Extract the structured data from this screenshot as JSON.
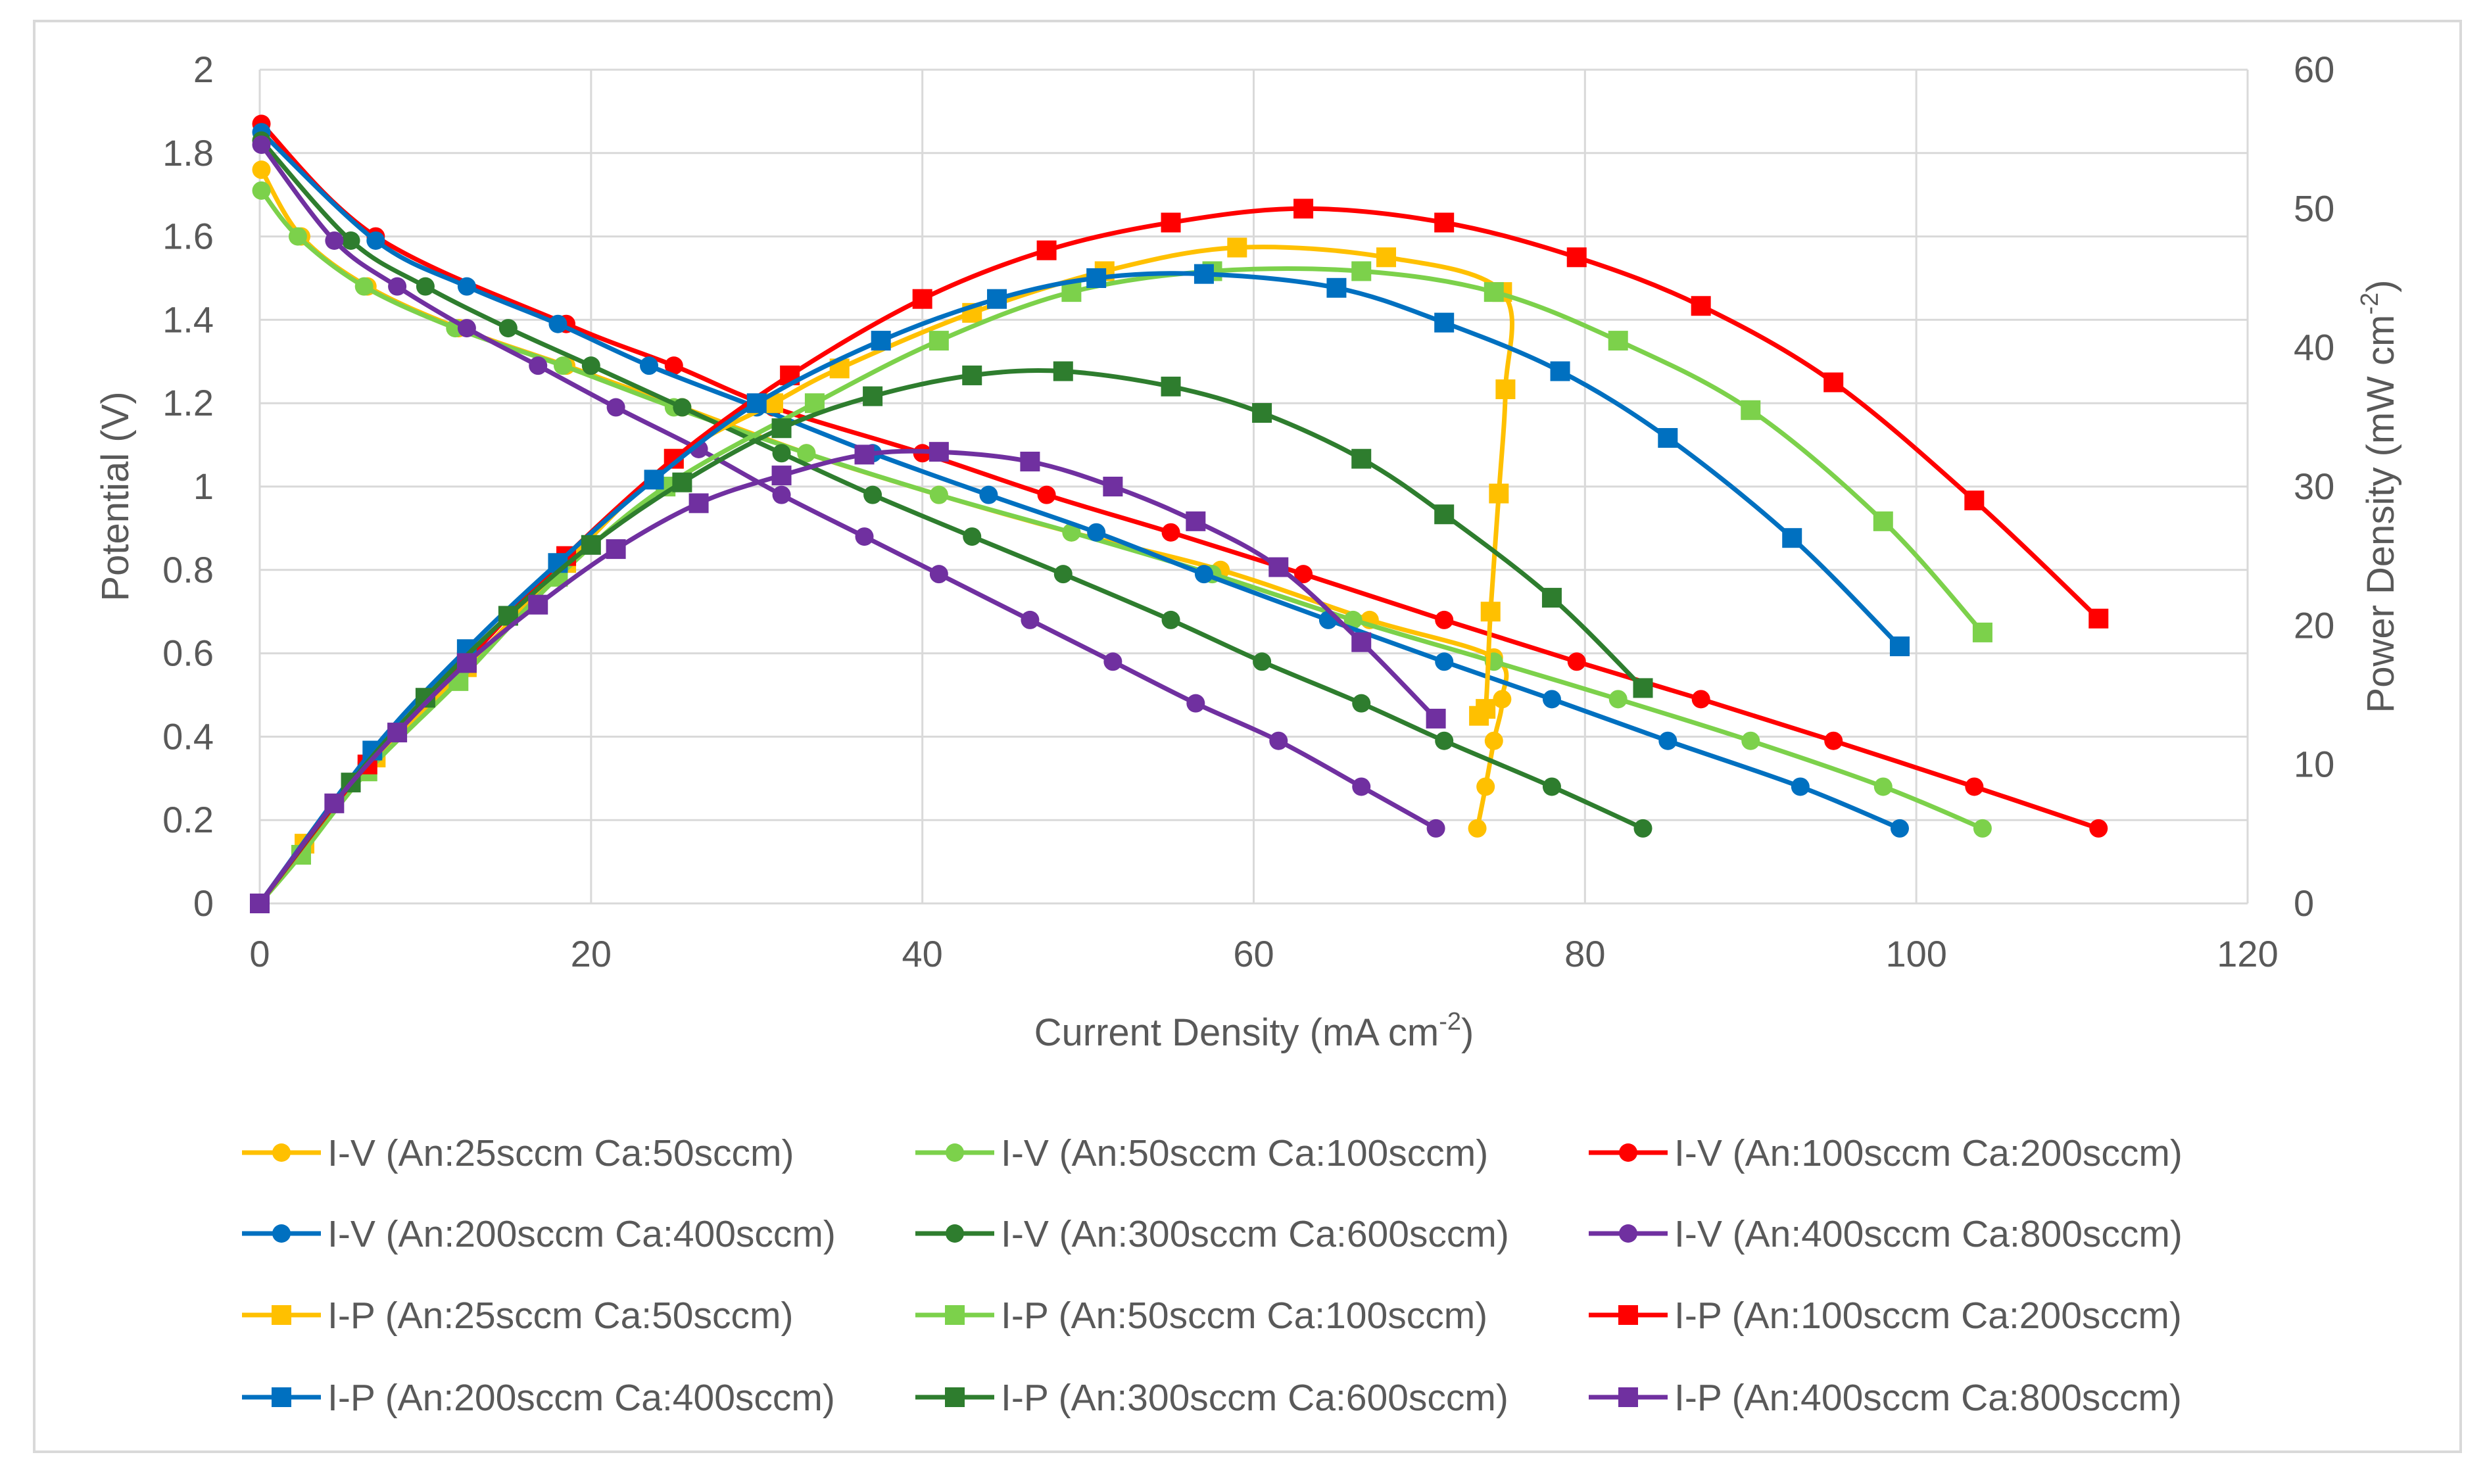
{
  "chart_data": {
    "type": "line",
    "title": "",
    "xlabel": "Current Density (mA cm",
    "xlabel_sup": "-2",
    "xlabel_end": ")",
    "ylabel": "Potential (V)",
    "y2label": "Power Density (mW cm",
    "y2label_sup": "-2",
    "y2label_end": ")",
    "xlim": [
      0,
      120
    ],
    "ylim": [
      0,
      2
    ],
    "y2lim": [
      0,
      60
    ],
    "xticks": [
      "0",
      "20",
      "40",
      "60",
      "80",
      "100",
      "120"
    ],
    "yticks": [
      "0",
      "0.2",
      "0.4",
      "0.6",
      "0.8",
      "1",
      "1.2",
      "1.4",
      "1.6",
      "1.8",
      "2"
    ],
    "y2ticks": [
      "0",
      "10",
      "20",
      "30",
      "40",
      "50",
      "60"
    ],
    "grid": true,
    "legend_position": "bottom",
    "series": [
      {
        "name": "I-V (An:25sccm  Ca:50sccm)",
        "axis": "left",
        "marker": "circle",
        "color": "#FFC000",
        "x": [
          0.1,
          2.5,
          6.5,
          12,
          18.5,
          25.5,
          33,
          41,
          49,
          58,
          67,
          74.5,
          75,
          74.5,
          74,
          73.5
        ],
        "y": [
          1.76,
          1.6,
          1.48,
          1.38,
          1.29,
          1.19,
          1.08,
          0.98,
          0.89,
          0.8,
          0.68,
          0.59,
          0.49,
          0.39,
          0.28,
          0.18
        ]
      },
      {
        "name": "I-V (An:50sccm  Ca:100sccm)",
        "axis": "left",
        "marker": "circle",
        "color": "#7CD14B",
        "x": [
          0.1,
          2.3,
          6.3,
          11.8,
          18.3,
          25,
          33,
          41,
          49,
          57.5,
          66,
          74.5,
          82,
          90,
          98,
          104
        ],
        "y": [
          1.71,
          1.6,
          1.48,
          1.38,
          1.29,
          1.19,
          1.08,
          0.98,
          0.89,
          0.79,
          0.68,
          0.58,
          0.49,
          0.39,
          0.28,
          0.18
        ]
      },
      {
        "name": "I-V (An:100sccm  Ca:200sccm)",
        "axis": "left",
        "marker": "circle",
        "color": "#FF0000",
        "x": [
          0.1,
          7,
          18.5,
          25,
          31,
          40,
          47.5,
          55,
          63,
          71.5,
          79.5,
          87,
          95,
          103.5,
          111
        ],
        "y": [
          1.87,
          1.6,
          1.39,
          1.29,
          1.19,
          1.08,
          0.98,
          0.89,
          0.79,
          0.68,
          0.58,
          0.49,
          0.39,
          0.28,
          0.18
        ]
      },
      {
        "name": "I-V (An:200sccm  Ca:400sccm)",
        "axis": "left",
        "marker": "circle",
        "color": "#0070C0",
        "x": [
          0.1,
          7,
          12.5,
          18,
          23.5,
          30,
          37,
          44,
          50.5,
          57,
          64.5,
          71.5,
          78,
          85,
          93,
          99
        ],
        "y": [
          1.85,
          1.59,
          1.48,
          1.39,
          1.29,
          1.19,
          1.08,
          0.98,
          0.89,
          0.79,
          0.68,
          0.58,
          0.49,
          0.39,
          0.28,
          0.18
        ]
      },
      {
        "name": "I-V (An:300sccm  Ca:600sccm)",
        "axis": "left",
        "marker": "circle",
        "color": "#2E7D2E",
        "x": [
          0.1,
          5.5,
          10,
          15,
          20,
          25.5,
          31.5,
          37,
          43,
          48.5,
          55,
          60.5,
          66.5,
          71.5,
          78,
          83.5
        ],
        "y": [
          1.83,
          1.59,
          1.48,
          1.38,
          1.29,
          1.19,
          1.08,
          0.98,
          0.88,
          0.79,
          0.68,
          0.58,
          0.48,
          0.39,
          0.28,
          0.18
        ]
      },
      {
        "name": "I-V (An:400sccm  Ca:800sccm)",
        "axis": "left",
        "marker": "circle",
        "color": "#7030A0",
        "x": [
          0.1,
          4.5,
          8.3,
          12.5,
          16.8,
          21.5,
          26.5,
          31.5,
          36.5,
          41,
          46.5,
          51.5,
          56.5,
          61.5,
          66.5,
          71
        ],
        "y": [
          1.82,
          1.59,
          1.48,
          1.38,
          1.29,
          1.19,
          1.09,
          0.98,
          0.88,
          0.79,
          0.68,
          0.58,
          0.48,
          0.39,
          0.28,
          0.18
        ]
      },
      {
        "name": "I-P (An:25sccm  Ca:50sccm)",
        "axis": "right",
        "marker": "square",
        "color": "#FFC000",
        "x": [
          0,
          2.7,
          7,
          12.5,
          18.5,
          25,
          31,
          35,
          43,
          51,
          59,
          68,
          75,
          75.2,
          74.8,
          74.3,
          74,
          73.6
        ],
        "y": [
          0,
          4.3,
          10.5,
          17,
          24.5,
          32,
          36,
          38.5,
          42.5,
          45.5,
          47.2,
          46.5,
          44,
          37,
          29.5,
          21,
          14,
          13.5
        ]
      },
      {
        "name": "I-P (An:50sccm  Ca:100sccm)",
        "axis": "right",
        "marker": "square",
        "color": "#7CD14B",
        "x": [
          0,
          2.5,
          6.5,
          12,
          18,
          24.5,
          33.5,
          41,
          49,
          57.5,
          66.5,
          74.5,
          82,
          90,
          98,
          104
        ],
        "y": [
          0,
          3.5,
          9.5,
          16,
          23.5,
          30,
          36,
          40.5,
          44,
          45.5,
          45.5,
          44,
          40.5,
          35.5,
          27.5,
          19.5
        ]
      },
      {
        "name": "I-P (An:100sccm  Ca:200sccm)",
        "axis": "right",
        "marker": "square",
        "color": "#FF0000",
        "x": [
          0,
          6.5,
          12.5,
          18.5,
          25,
          32,
          40,
          47.5,
          55,
          63,
          71.5,
          79.5,
          87,
          95,
          103.5,
          111
        ],
        "y": [
          0,
          10,
          17.5,
          25,
          32,
          38,
          43.5,
          47,
          49,
          50,
          49,
          46.5,
          43,
          37.5,
          29,
          20.5
        ]
      },
      {
        "name": "I-P (An:200sccm  Ca:400sccm)",
        "axis": "right",
        "marker": "square",
        "color": "#0070C0",
        "x": [
          0,
          6.8,
          12.5,
          18,
          23.8,
          30,
          37.5,
          44.5,
          50.5,
          57,
          65,
          71.5,
          78.5,
          85,
          92.5,
          99
        ],
        "y": [
          0,
          11,
          18.3,
          24.5,
          30.5,
          36,
          40.5,
          43.5,
          45,
          45.3,
          44.3,
          41.8,
          38.3,
          33.5,
          26.3,
          18.5
        ]
      },
      {
        "name": "I-P (An:300sccm  Ca:600sccm)",
        "axis": "right",
        "marker": "square",
        "color": "#2E7D2E",
        "x": [
          0,
          5.5,
          10,
          15,
          20,
          25.5,
          31.5,
          37,
          43,
          48.5,
          55,
          60.5,
          66.5,
          71.5,
          78,
          83.5
        ],
        "y": [
          0,
          8.7,
          14.8,
          20.7,
          25.8,
          30.3,
          34.2,
          36.5,
          38,
          38.3,
          37.2,
          35.3,
          32,
          28,
          22,
          15.5
        ]
      },
      {
        "name": "I-P (An:400sccm  Ca:800sccm)",
        "axis": "right",
        "marker": "square",
        "color": "#7030A0",
        "x": [
          0,
          4.5,
          8.3,
          12.5,
          16.8,
          21.5,
          26.5,
          31.5,
          36.5,
          41,
          46.5,
          51.5,
          56.5,
          61.5,
          66.5,
          71
        ],
        "y": [
          0,
          7.2,
          12.3,
          17.3,
          21.5,
          25.5,
          28.8,
          30.8,
          32.3,
          32.5,
          31.8,
          30,
          27.5,
          24.2,
          18.8,
          13.3
        ]
      }
    ]
  }
}
